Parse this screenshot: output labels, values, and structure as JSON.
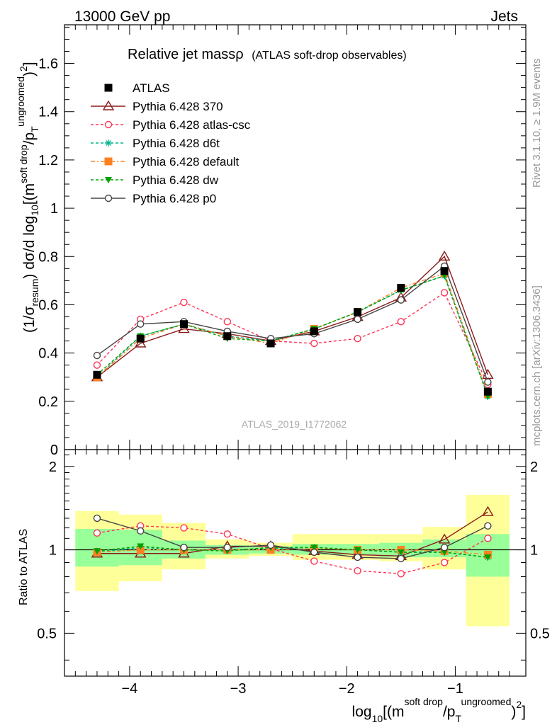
{
  "header": {
    "left": "13000 GeV pp",
    "right": "Jets"
  },
  "side": {
    "rivet": "Rivet 3.1.10, ≥ 1.9M events",
    "mcplots": "mcplots.cern.ch [arXiv:1306.3436]"
  },
  "chart_data": {
    "type": "line",
    "title_main": "Relative jet massρ",
    "title_sub": "(ATLAS soft-drop observables)",
    "watermark": "ATLAS_2019_I1772062",
    "xlabel": "log10[(m^soft drop/pT^ungroomed)^2]",
    "ylabel": "(1/σresum) dσ/d log10[(m^soft drop/pT^ungroomed)^2]",
    "ratio_ylabel": "Ratio to ATLAS",
    "xlim": [
      -4.6,
      -0.35
    ],
    "ylim": [
      0,
      1.76
    ],
    "ratio_ylim": [
      0.35,
      2.3
    ],
    "ratio_log": true,
    "x_ticks": [
      "−4",
      "−3",
      "−2",
      "−1"
    ],
    "y_ticks": [
      "0",
      "0.2",
      "0.4",
      "0.6",
      "0.8",
      "1",
      "1.2",
      "1.4",
      "1.6"
    ],
    "ratio_ticks": [
      "0.5",
      "1",
      "2"
    ],
    "x": [
      -4.3,
      -3.9,
      -3.5,
      -3.1,
      -2.7,
      -2.3,
      -1.9,
      -1.5,
      -1.1,
      -0.7
    ],
    "bin_edges": [
      -4.5,
      -4.1,
      -3.7,
      -3.3,
      -2.9,
      -2.5,
      -2.1,
      -1.7,
      -1.3,
      -0.9,
      -0.5
    ],
    "data": {
      "name": "ATLAS",
      "values": [
        0.31,
        0.46,
        0.52,
        0.47,
        0.44,
        0.49,
        0.57,
        0.67,
        0.74,
        0.24
      ],
      "band_inner_up": [
        1.19,
        1.18,
        1.08,
        1.04,
        1.03,
        1.05,
        1.05,
        1.06,
        1.09,
        1.14
      ],
      "band_inner_dn": [
        0.87,
        0.88,
        0.93,
        0.96,
        0.97,
        0.96,
        0.96,
        0.94,
        0.94,
        0.8
      ],
      "band_outer_up": [
        1.38,
        1.34,
        1.25,
        1.09,
        1.06,
        1.14,
        1.14,
        1.14,
        1.21,
        1.58
      ],
      "band_outer_dn": [
        0.71,
        0.77,
        0.85,
        0.93,
        0.95,
        0.92,
        0.92,
        0.91,
        0.85,
        0.53
      ]
    },
    "series": [
      {
        "name": "Pythia 6.428 370",
        "color": "#8b1a1a",
        "dash": "",
        "marker": "triangle-open",
        "values": [
          0.3,
          0.44,
          0.5,
          0.48,
          0.45,
          0.49,
          0.55,
          0.63,
          0.8,
          0.31
        ],
        "ratio": [
          0.97,
          0.97,
          0.97,
          1.03,
          1.03,
          0.99,
          0.96,
          0.95,
          1.09,
          1.37
        ]
      },
      {
        "name": "Pythia 6.428 atlas-csc",
        "color": "#ff3355",
        "dash": "4,3",
        "marker": "circle-open",
        "values": [
          0.35,
          0.54,
          0.61,
          0.53,
          0.45,
          0.44,
          0.46,
          0.53,
          0.65,
          0.27
        ],
        "ratio": [
          1.15,
          1.22,
          1.2,
          1.14,
          1.01,
          0.91,
          0.84,
          0.82,
          0.9,
          1.1
        ]
      },
      {
        "name": "Pythia 6.428 d6t",
        "color": "#00b48c",
        "dash": "4,3",
        "marker": "star",
        "values": [
          0.3,
          0.47,
          0.52,
          0.47,
          0.45,
          0.5,
          0.57,
          0.66,
          0.72,
          0.22
        ],
        "ratio": [
          0.98,
          1.02,
          1.0,
          1.0,
          1.01,
          1.02,
          1.0,
          0.98,
          0.98,
          0.94
        ]
      },
      {
        "name": "Pythia 6.428 default",
        "color": "#ff8020",
        "dash": "6,3,2,3",
        "marker": "square",
        "values": [
          0.3,
          0.46,
          0.52,
          0.47,
          0.44,
          0.5,
          0.57,
          0.67,
          0.73,
          0.23
        ],
        "ratio": [
          0.98,
          1.0,
          1.0,
          1.0,
          1.0,
          1.01,
          1.0,
          1.0,
          0.99,
          0.96
        ]
      },
      {
        "name": "Pythia 6.428 dw",
        "color": "#00a000",
        "dash": "4,3",
        "marker": "triangle-down",
        "values": [
          0.31,
          0.47,
          0.52,
          0.46,
          0.45,
          0.5,
          0.57,
          0.66,
          0.72,
          0.22
        ],
        "ratio": [
          0.99,
          1.03,
          1.0,
          0.99,
          1.02,
          1.02,
          1.0,
          0.98,
          0.98,
          0.94
        ]
      },
      {
        "name": "Pythia 6.428 p0",
        "color": "#444444",
        "dash": "",
        "marker": "circle-open",
        "values": [
          0.39,
          0.52,
          0.53,
          0.49,
          0.46,
          0.48,
          0.54,
          0.62,
          0.76,
          0.28
        ],
        "ratio": [
          1.3,
          1.17,
          1.02,
          1.02,
          1.04,
          0.98,
          0.94,
          0.93,
          1.02,
          1.22
        ]
      }
    ]
  }
}
